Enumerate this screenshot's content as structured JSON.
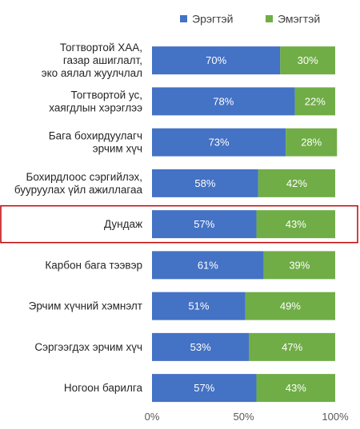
{
  "chart_data": {
    "type": "bar",
    "orientation": "horizontal",
    "stacked": "percent",
    "categories": [
      [
        "Тогтвортой ХАА,",
        "газар ашиглалт,",
        "эко аялал жуулчлал"
      ],
      [
        "Тогтвортой ус,",
        "хаягдлын хэрэглээ"
      ],
      [
        "Бага бохирдуулагч",
        "эрчим хүч"
      ],
      [
        "Бохирдлоос сэргийлэх,",
        "бууруулах үйл ажиллагаа"
      ],
      [
        "Дундаж"
      ],
      [
        "Карбон бага тээвэр"
      ],
      [
        "Эрчим хүчний хэмнэлт"
      ],
      [
        "Сэргээгдэх эрчим хүч"
      ],
      [
        "Ногоон барилга"
      ]
    ],
    "series": [
      {
        "name": "Эрэгтэй",
        "values": [
          70,
          78,
          73,
          58,
          57,
          61,
          51,
          53,
          57
        ],
        "labels": [
          "70%",
          "78%",
          "73%",
          "58%",
          "57%",
          "61%",
          "51%",
          "53%",
          "57%"
        ]
      },
      {
        "name": "Эмэгтэй",
        "values": [
          30,
          22,
          28,
          42,
          43,
          39,
          49,
          47,
          43
        ],
        "labels": [
          "30%",
          "22%",
          "28%",
          "42%",
          "43%",
          "39%",
          "49%",
          "47%",
          "43%"
        ]
      }
    ],
    "xlim": [
      0,
      100
    ],
    "xticks": [
      "0%",
      "50%",
      "100%"
    ],
    "legend": "top-right",
    "highlighted_category": "Дундаж",
    "highlight_color": "#c00000",
    "colors": [
      "#4472c4",
      "#70ad47"
    ],
    "grid": false
  }
}
